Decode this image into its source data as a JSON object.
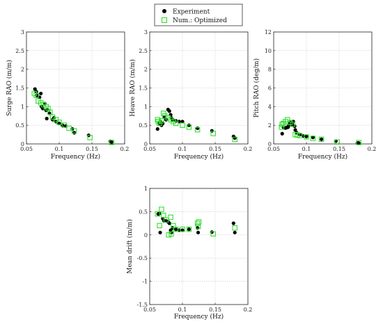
{
  "legend": {
    "placement": "top-center",
    "entries": [
      {
        "label": "Experiment",
        "marker": "filled-circle",
        "color": "#000000"
      },
      {
        "label": "Num.: Optimized",
        "marker": "open-square",
        "color": "#33dd33"
      }
    ]
  },
  "chart_data": [
    {
      "type": "scatter",
      "xlabel": "Frequency (Hz)",
      "ylabel": "Surge RAO (m/m)",
      "xlim": [
        0.05,
        0.2
      ],
      "ylim": [
        0,
        3
      ],
      "xticks": [
        "0.05",
        "0.1",
        "0.15",
        "0.2"
      ],
      "yticks": [
        "0",
        "0.5",
        "1",
        "1.5",
        "2",
        "2.5",
        "3"
      ],
      "grid": true,
      "series": [
        {
          "name": "Experiment",
          "points": [
            [
              0.063,
              1.47
            ],
            [
              0.065,
              1.4
            ],
            [
              0.066,
              1.3
            ],
            [
              0.07,
              1.25
            ],
            [
              0.072,
              1.35
            ],
            [
              0.073,
              1.0
            ],
            [
              0.075,
              0.95
            ],
            [
              0.078,
              1.08
            ],
            [
              0.08,
              0.9
            ],
            [
              0.081,
              0.68
            ],
            [
              0.082,
              0.92
            ],
            [
              0.085,
              0.82
            ],
            [
              0.09,
              0.65
            ],
            [
              0.092,
              0.7
            ],
            [
              0.095,
              0.6
            ],
            [
              0.1,
              0.55
            ],
            [
              0.105,
              0.5
            ],
            [
              0.11,
              0.48
            ],
            [
              0.12,
              0.4
            ],
            [
              0.123,
              0.3
            ],
            [
              0.145,
              0.23
            ],
            [
              0.178,
              0.07
            ],
            [
              0.18,
              0.05
            ]
          ]
        },
        {
          "name": "Num.: Optimized",
          "points": [
            [
              0.062,
              1.35
            ],
            [
              0.065,
              1.3
            ],
            [
              0.068,
              1.15
            ],
            [
              0.072,
              1.1
            ],
            [
              0.076,
              1.05
            ],
            [
              0.08,
              1.0
            ],
            [
              0.083,
              0.95
            ],
            [
              0.086,
              0.85
            ],
            [
              0.09,
              0.72
            ],
            [
              0.095,
              0.65
            ],
            [
              0.1,
              0.58
            ],
            [
              0.108,
              0.5
            ],
            [
              0.115,
              0.42
            ],
            [
              0.123,
              0.35
            ],
            [
              0.147,
              0.17
            ],
            [
              0.18,
              0.04
            ]
          ]
        }
      ]
    },
    {
      "type": "scatter",
      "xlabel": "Frequency (Hz)",
      "ylabel": "Heave RAO (m/m)",
      "xlim": [
        0.05,
        0.2
      ],
      "ylim": [
        0,
        3
      ],
      "xticks": [
        "0.05",
        "0.1",
        "0.15",
        "0.2"
      ],
      "yticks": [
        "0",
        "0.5",
        "1",
        "1.5",
        "2",
        "2.5",
        "3"
      ],
      "grid": true,
      "series": [
        {
          "name": "Experiment",
          "points": [
            [
              0.062,
              0.4
            ],
            [
              0.065,
              0.55
            ],
            [
              0.066,
              0.6
            ],
            [
              0.068,
              0.5
            ],
            [
              0.07,
              0.55
            ],
            [
              0.072,
              0.72
            ],
            [
              0.075,
              0.65
            ],
            [
              0.078,
              0.92
            ],
            [
              0.08,
              0.88
            ],
            [
              0.082,
              0.78
            ],
            [
              0.083,
              0.7
            ],
            [
              0.085,
              0.65
            ],
            [
              0.09,
              0.62
            ],
            [
              0.095,
              0.6
            ],
            [
              0.1,
              0.6
            ],
            [
              0.11,
              0.5
            ],
            [
              0.123,
              0.42
            ],
            [
              0.145,
              0.35
            ],
            [
              0.178,
              0.2
            ],
            [
              0.18,
              0.16
            ]
          ]
        },
        {
          "name": "Num.: Optimized",
          "points": [
            [
              0.062,
              0.65
            ],
            [
              0.063,
              0.6
            ],
            [
              0.065,
              0.55
            ],
            [
              0.068,
              0.62
            ],
            [
              0.071,
              0.82
            ],
            [
              0.073,
              0.75
            ],
            [
              0.078,
              0.7
            ],
            [
              0.082,
              0.65
            ],
            [
              0.086,
              0.6
            ],
            [
              0.09,
              0.55
            ],
            [
              0.1,
              0.5
            ],
            [
              0.11,
              0.45
            ],
            [
              0.123,
              0.38
            ],
            [
              0.147,
              0.28
            ],
            [
              0.18,
              0.12
            ]
          ]
        }
      ]
    },
    {
      "type": "scatter",
      "xlabel": "Frequency (Hz)",
      "ylabel": "Pitch RAO (deg/m)",
      "xlim": [
        0.05,
        0.2
      ],
      "ylim": [
        0,
        12
      ],
      "xticks": [
        "0.05",
        "0.1",
        "0.15",
        "0.2"
      ],
      "yticks": [
        "0",
        "2",
        "4",
        "6",
        "8",
        "10",
        "12"
      ],
      "grid": true,
      "series": [
        {
          "name": "Experiment",
          "points": [
            [
              0.063,
              1.1
            ],
            [
              0.065,
              1.8
            ],
            [
              0.068,
              1.7
            ],
            [
              0.07,
              1.75
            ],
            [
              0.072,
              1.8
            ],
            [
              0.073,
              2.0
            ],
            [
              0.075,
              2.3
            ],
            [
              0.078,
              2.1
            ],
            [
              0.08,
              2.4
            ],
            [
              0.082,
              1.9
            ],
            [
              0.083,
              1.5
            ],
            [
              0.085,
              1.2
            ],
            [
              0.09,
              1.0
            ],
            [
              0.095,
              0.85
            ],
            [
              0.1,
              0.8
            ],
            [
              0.11,
              0.7
            ],
            [
              0.123,
              0.5
            ],
            [
              0.145,
              0.3
            ],
            [
              0.178,
              0.1
            ],
            [
              0.18,
              0.1
            ]
          ]
        },
        {
          "name": "Num.: Optimized",
          "points": [
            [
              0.062,
              1.8
            ],
            [
              0.063,
              2.1
            ],
            [
              0.065,
              2.2
            ],
            [
              0.068,
              2.4
            ],
            [
              0.071,
              2.6
            ],
            [
              0.075,
              2.3
            ],
            [
              0.079,
              2.1
            ],
            [
              0.083,
              1.0
            ],
            [
              0.086,
              0.95
            ],
            [
              0.09,
              0.9
            ],
            [
              0.1,
              0.75
            ],
            [
              0.11,
              0.6
            ],
            [
              0.123,
              0.5
            ],
            [
              0.147,
              0.2
            ],
            [
              0.18,
              0.15
            ]
          ]
        }
      ]
    },
    {
      "type": "scatter",
      "xlabel": "Frequency (Hz)",
      "ylabel": "Mean drift (m/m)",
      "xlim": [
        0.05,
        0.2
      ],
      "ylim": [
        -1.5,
        1
      ],
      "xticks": [
        "0.05",
        "0.1",
        "0.15",
        "0.2"
      ],
      "yticks": [
        "-1.5",
        "-1",
        "-0.5",
        "0",
        "0.5",
        "1"
      ],
      "grid": true,
      "series": [
        {
          "name": "Experiment",
          "points": [
            [
              0.063,
              0.45
            ],
            [
              0.065,
              0.46
            ],
            [
              0.066,
              0.05
            ],
            [
              0.07,
              0.35
            ],
            [
              0.072,
              0.3
            ],
            [
              0.075,
              0.3
            ],
            [
              0.078,
              0.28
            ],
            [
              0.08,
              0.25
            ],
            [
              0.082,
              0.1
            ],
            [
              0.083,
              0.05
            ],
            [
              0.085,
              0.15
            ],
            [
              0.09,
              0.12
            ],
            [
              0.095,
              0.1
            ],
            [
              0.1,
              0.1
            ],
            [
              0.11,
              0.12
            ],
            [
              0.123,
              0.15
            ],
            [
              0.124,
              0.05
            ],
            [
              0.145,
              0.06
            ],
            [
              0.178,
              0.25
            ],
            [
              0.18,
              0.05
            ]
          ]
        },
        {
          "name": "Num.: Optimized",
          "points": [
            [
              0.062,
              0.45
            ],
            [
              0.065,
              0.2
            ],
            [
              0.068,
              0.55
            ],
            [
              0.071,
              0.42
            ],
            [
              0.075,
              0.32
            ],
            [
              0.079,
              0.0
            ],
            [
              0.082,
              0.38
            ],
            [
              0.083,
              0.02
            ],
            [
              0.086,
              0.2
            ],
            [
              0.09,
              0.12
            ],
            [
              0.1,
              0.12
            ],
            [
              0.11,
              0.12
            ],
            [
              0.123,
              0.25
            ],
            [
              0.124,
              0.18
            ],
            [
              0.125,
              0.28
            ],
            [
              0.147,
              0.02
            ],
            [
              0.18,
              0.15
            ]
          ]
        }
      ]
    }
  ]
}
